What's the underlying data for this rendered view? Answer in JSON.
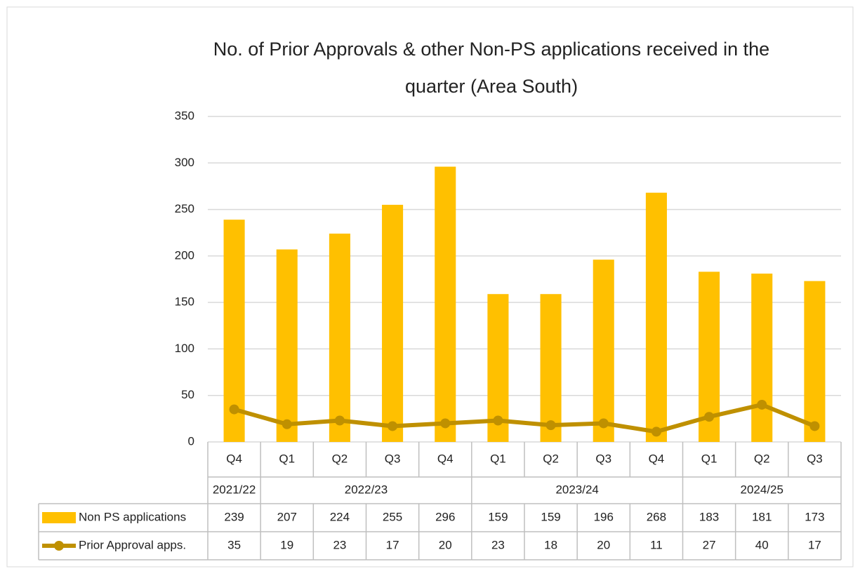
{
  "chart_data": {
    "type": "bar_line",
    "title": [
      "No. of Prior Approvals & other Non-PS applications received in the",
      "quarter (Area South)"
    ],
    "categories": [
      "Q4",
      "Q1",
      "Q2",
      "Q3",
      "Q4",
      "Q1",
      "Q2",
      "Q3",
      "Q4",
      "Q1",
      "Q2",
      "Q3"
    ],
    "groups": [
      "2021/22",
      "2022/23",
      null,
      null,
      null,
      "2023/24",
      null,
      null,
      null,
      "2024/25",
      null,
      null
    ],
    "series": [
      {
        "name": "Non PS applications",
        "kind": "bar",
        "color": "#ffc000",
        "values": [
          239,
          207,
          224,
          255,
          296,
          159,
          159,
          196,
          268,
          183,
          181,
          173
        ]
      },
      {
        "name": "Prior Approval apps.",
        "kind": "line",
        "color": "#bf9000",
        "values": [
          35,
          19,
          23,
          17,
          20,
          23,
          18,
          20,
          11,
          27,
          40,
          17
        ]
      }
    ],
    "ylim": [
      0,
      350
    ],
    "yticks": [
      0,
      50,
      100,
      150,
      200,
      250,
      300,
      350
    ],
    "grid": true,
    "data_table": true
  }
}
